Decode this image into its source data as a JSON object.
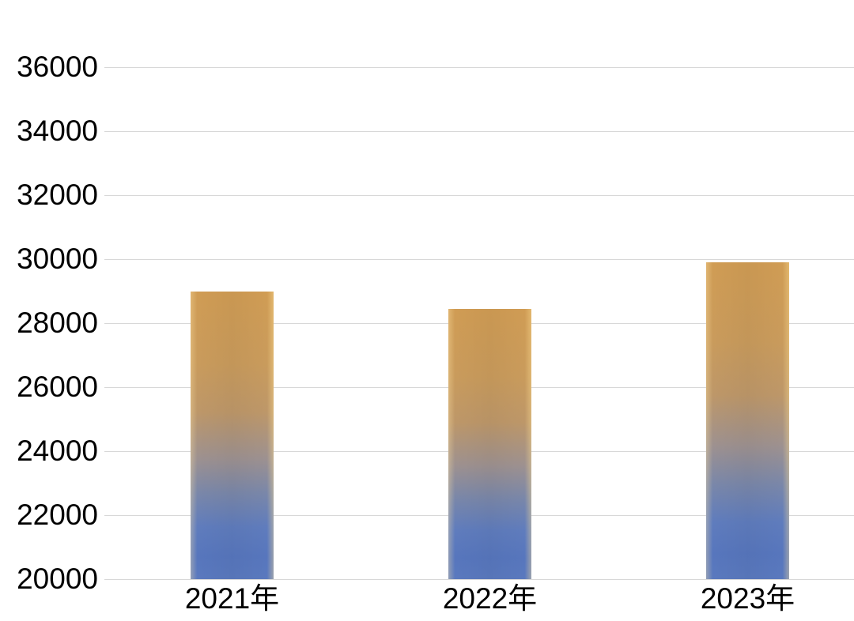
{
  "chart_data": {
    "type": "bar",
    "title": "",
    "categories": [
      "2021年",
      "2022年",
      "2023年"
    ],
    "values": [
      29000,
      28450,
      29900
    ],
    "xlabel": "",
    "ylabel": "",
    "ylim": [
      20000,
      36000
    ],
    "ytick_step": 2000,
    "yticks": [
      36000,
      34000,
      32000,
      30000,
      28000,
      26000,
      24000,
      22000,
      20000
    ],
    "grid": "horizontal-only",
    "legend_position": "none",
    "colors": {
      "bar_gradient_top": "#d09c54",
      "bar_gradient_middle": "#9d9190",
      "bar_gradient_bottom": "#5a79be",
      "gridline": "#d8d8d8",
      "axis_label": "#000000",
      "background": "#ffffff"
    }
  }
}
